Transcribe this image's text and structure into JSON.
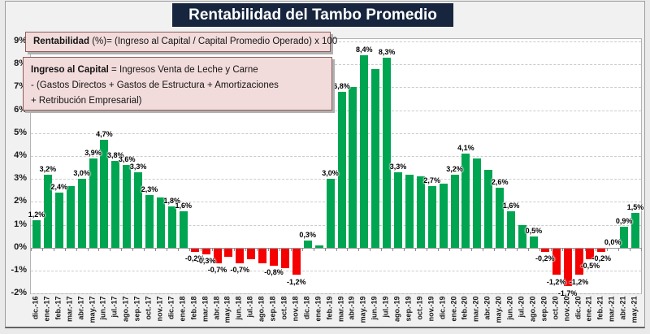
{
  "title": "Rentabilidad del Tambo Promedio",
  "annotations": {
    "box1": {
      "bold": "Rentabilidad",
      "rest": " (%)= (Ingreso al Capital / Capital Promedio Operado) x 100"
    },
    "box2": {
      "line1_bold": "Ingreso al Capital",
      "line1_rest": " = Ingresos Venta de Leche y Carne",
      "line2": "-  (Gastos Directos + Gastos de Estructura  + Amortizaciones",
      "line3": "+  Retribución Empresarial)"
    }
  },
  "chart_data": {
    "type": "bar",
    "title": "Rentabilidad del Tambo Promedio",
    "xlabel": "",
    "ylabel": "",
    "ylim": [
      -2,
      9
    ],
    "grid": "horizontal-dashed",
    "legend": "none",
    "yticks": [
      "9%",
      "8%",
      "7%",
      "6%",
      "5%",
      "4%",
      "3%",
      "2%",
      "1%",
      "0%",
      "-1%",
      "-2%"
    ],
    "colors": {
      "positive": "#00a551",
      "negative": "#f50000"
    },
    "categories": [
      "dic.-16",
      "ene.-17",
      "feb.-17",
      "mar.-17",
      "abr.-17",
      "may.-17",
      "jun.-17",
      "jul.-17",
      "ago.-17",
      "sep.-17",
      "oct.-17",
      "nov.-17",
      "dic.-17",
      "ene.-18",
      "feb.-18",
      "mar.-18",
      "abr.-18",
      "may.-18",
      "jun.-18",
      "jul.-18",
      "ago.-18",
      "sep.-18",
      "oct.-18",
      "nov.-18",
      "dic.-18",
      "ene.-19",
      "feb.-19",
      "mar.-19",
      "abr.-19",
      "may.-19",
      "jun.-19",
      "jul.-19",
      "ago.-19",
      "sep.-19",
      "oct.-19",
      "nov.-19",
      "dic.-19",
      "ene.-20",
      "feb.-20",
      "mar.-20",
      "abr.-20",
      "may.-20",
      "jun.-20",
      "jul.-20",
      "ago.-20",
      "sep.-20",
      "oct.-20",
      "nov.-20",
      "dic.-20",
      "ene.-21",
      "feb.-21",
      "mar.-21",
      "abr.-21",
      "may.-21"
    ],
    "values": [
      1.2,
      3.2,
      2.4,
      2.7,
      3.0,
      3.9,
      4.7,
      3.8,
      3.6,
      3.3,
      2.3,
      2.2,
      1.8,
      1.6,
      -0.2,
      -0.3,
      -0.7,
      -0.4,
      -0.7,
      -0.5,
      -0.7,
      -0.8,
      -0.9,
      -1.2,
      0.3,
      0.1,
      3.0,
      6.8,
      7.0,
      8.4,
      7.8,
      8.3,
      3.3,
      3.2,
      3.1,
      2.7,
      2.8,
      3.2,
      4.1,
      3.9,
      3.4,
      2.6,
      1.6,
      1.0,
      0.5,
      -0.2,
      -1.2,
      -1.7,
      -1.2,
      -0.5,
      -0.2,
      0.0,
      0.9,
      1.5
    ],
    "data_labels": [
      "1,2%",
      "3,2%",
      "2,4%",
      null,
      "3,0%",
      "3,9%",
      "4,7%",
      "3,8%",
      "3,6%",
      "3,3%",
      "2,3%",
      null,
      "1,8%",
      "1,6%",
      "-0,2%",
      "-0,3%",
      "-0,7%",
      null,
      "-0,7%",
      null,
      null,
      "-0,8%",
      null,
      "-1,2%",
      "0,3%",
      null,
      "3,0%",
      "6,8%",
      null,
      "8,4%",
      null,
      "8,3%",
      "3,3%",
      null,
      null,
      "2,7%",
      null,
      "3,2%",
      "4,1%",
      null,
      null,
      "2,6%",
      "1,6%",
      null,
      "0,5%",
      "-0,2%",
      "-1,2%",
      "-1,7%",
      "-1,2%",
      "-0,5%",
      "-0,2%",
      "0,0%",
      "0,9%",
      "1,5%"
    ]
  }
}
